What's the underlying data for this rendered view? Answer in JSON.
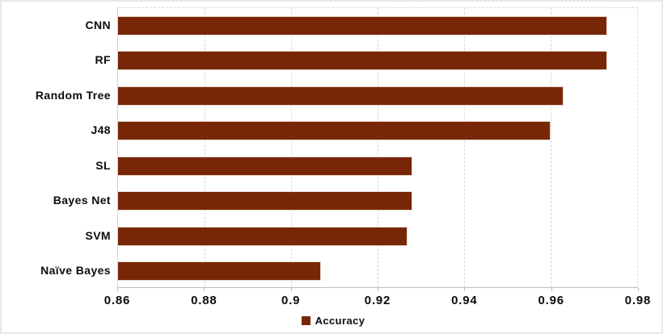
{
  "chart_data": {
    "type": "bar",
    "orientation": "horizontal",
    "title": "",
    "categories": [
      "CNN",
      "RF",
      "Random Tree",
      "J48",
      "SL",
      "Bayes Net",
      "SVM",
      "Naïve Bayes"
    ],
    "series": [
      {
        "name": "Accuracy",
        "values": [
          0.973,
          0.973,
          0.963,
          0.96,
          0.928,
          0.928,
          0.927,
          0.907
        ]
      }
    ],
    "xlim": [
      0.86,
      0.98
    ],
    "xticks": [
      0.86,
      0.88,
      0.9,
      0.92,
      0.94,
      0.96,
      0.98
    ],
    "xtick_labels": [
      "0.86",
      "0.88",
      "0.9",
      "0.92",
      "0.94",
      "0.96",
      "0.98"
    ],
    "grid": true,
    "gridline_style": "dashed",
    "legend_position": "bottom-center",
    "bar_color": "#772708",
    "gridline_color": "#d9d9d9",
    "text_color": "#0d0d0d",
    "background_color": "#ffffff"
  }
}
